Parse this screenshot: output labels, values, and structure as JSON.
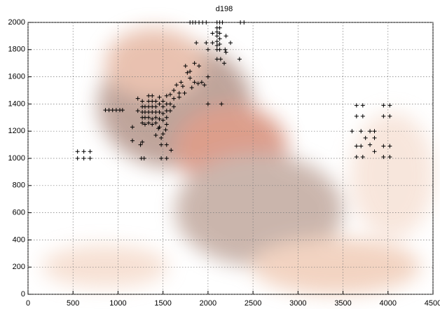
{
  "chart_data": {
    "type": "scatter",
    "title": "d198",
    "color": "#000000",
    "grid": true,
    "xlim": [
      0,
      4500
    ],
    "ylim": [
      0,
      2000
    ],
    "xticks": [
      0,
      500,
      1000,
      1500,
      2000,
      2500,
      3000,
      3500,
      4000,
      4500
    ],
    "yticks": [
      0,
      200,
      400,
      600,
      800,
      1000,
      1200,
      1400,
      1600,
      1800,
      2000
    ],
    "x": [
      550,
      620,
      690,
      550,
      620,
      690,
      860,
      900,
      940,
      980,
      1020,
      1050,
      1270,
      1270,
      1270,
      1270,
      1270,
      1300,
      1300,
      1300,
      1300,
      1340,
      1340,
      1340,
      1340,
      1340,
      1340,
      1380,
      1380,
      1380,
      1380,
      1380,
      1380,
      1420,
      1420,
      1420,
      1420,
      1420,
      1460,
      1460,
      1460,
      1460,
      1460,
      1500,
      1500,
      1500,
      1500,
      1540,
      1540,
      1540,
      1540,
      1540,
      1580,
      1580,
      1580,
      1620,
      1620,
      1620,
      1680,
      1680,
      1720,
      1160,
      1160,
      1260,
      1290,
      1250,
      1270,
      1420,
      1450,
      1480,
      1500,
      1480,
      1540,
      1480,
      1540,
      1590,
      1530,
      1220,
      1220,
      1800,
      1830,
      1860,
      1900,
      1940,
      1980,
      2100,
      2130,
      2160,
      2360,
      2400,
      2100,
      2100,
      2100,
      2100,
      2100,
      2100,
      2130,
      2130,
      2130,
      2130,
      2130,
      2200,
      2250,
      2190,
      2050,
      2050,
      1870,
      1980,
      2000,
      2100,
      2140,
      2200,
      2180,
      2350,
      1750,
      1770,
      1800,
      1800,
      1850,
      1900,
      1850,
      1890,
      1930,
      1960,
      2000,
      1820,
      1740,
      2000,
      2150,
      1700,
      1650,
      3650,
      3720,
      3650,
      3720,
      3600,
      3700,
      3750,
      3800,
      3850,
      3700,
      3650,
      3650,
      3720,
      3800,
      3850,
      3850,
      3950,
      4020,
      3950,
      4020,
      3950,
      4020,
      3950,
      4020
    ],
    "y": [
      1050,
      1050,
      1050,
      1000,
      1000,
      1000,
      1355,
      1355,
      1355,
      1355,
      1355,
      1355,
      1260,
      1300,
      1340,
      1380,
      1420,
      1250,
      1300,
      1340,
      1380,
      1260,
      1300,
      1340,
      1380,
      1420,
      1460,
      1250,
      1290,
      1340,
      1380,
      1420,
      1460,
      1260,
      1300,
      1340,
      1380,
      1420,
      1230,
      1290,
      1340,
      1400,
      1450,
      1280,
      1330,
      1380,
      1420,
      1250,
      1300,
      1350,
      1400,
      1460,
      1350,
      1400,
      1470,
      1380,
      1440,
      1500,
      1450,
      1480,
      1530,
      1230,
      1130,
      1000,
      1000,
      1100,
      1120,
      1170,
      1220,
      1150,
      1180,
      1100,
      1100,
      1000,
      1000,
      1060,
      1210,
      1440,
      1350,
      2000,
      2000,
      2000,
      2000,
      2000,
      2000,
      2000,
      2000,
      2000,
      2000,
      2000,
      1800,
      1830,
      1860,
      1900,
      1930,
      1960,
      1800,
      1840,
      1880,
      1920,
      1960,
      1900,
      1850,
      1800,
      1920,
      1850,
      1850,
      1850,
      1800,
      1730,
      1730,
      1780,
      1700,
      1730,
      1680,
      1630,
      1640,
      1590,
      1700,
      1680,
      1560,
      1550,
      1560,
      1540,
      1600,
      1520,
      1480,
      1400,
      1400,
      1560,
      1540,
      1390,
      1390,
      1310,
      1310,
      1200,
      1200,
      1150,
      1200,
      1200,
      1090,
      1090,
      1010,
      1010,
      1100,
      1150,
      1050,
      1390,
      1390,
      1310,
      1310,
      1090,
      1090,
      1010,
      1010
    ]
  }
}
